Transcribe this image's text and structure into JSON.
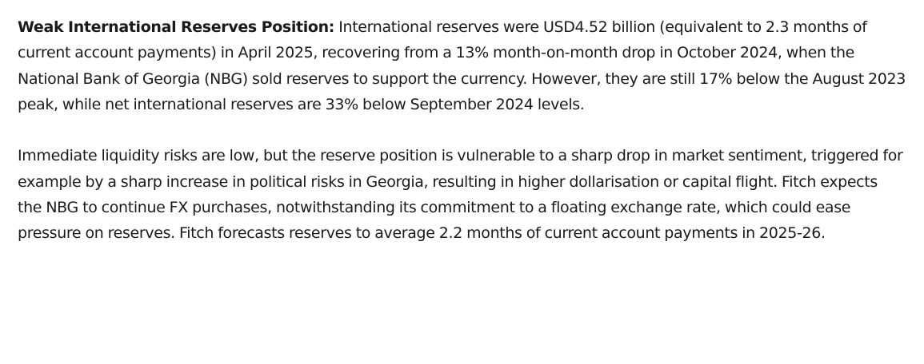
{
  "document": {
    "paragraphs": [
      {
        "heading": "Weak International Reserves Position:",
        "text": "International reserves were USD4.52 billion (equivalent to 2.3 months of current account payments) in April 2025, recovering from a 13% month-on-month drop in October 2024, when the National Bank of Georgia (NBG) sold reserves to support the currency. However, they are still 17% below the August 2023 peak, while net international reserves are 33% below September 2024 levels."
      },
      {
        "text": "Immediate liquidity risks are low, but the reserve position is vulnerable to a sharp drop in market sentiment, triggered for example by a sharp increase in political risks in Georgia, resulting in higher dollarisation or capital flight. Fitch expects the NBG to continue FX purchases, notwithstanding its commitment to a floating exchange rate, which could ease pressure on reserves. Fitch forecasts reserves to average 2.2 months of current account payments in 2025-26."
      }
    ]
  }
}
